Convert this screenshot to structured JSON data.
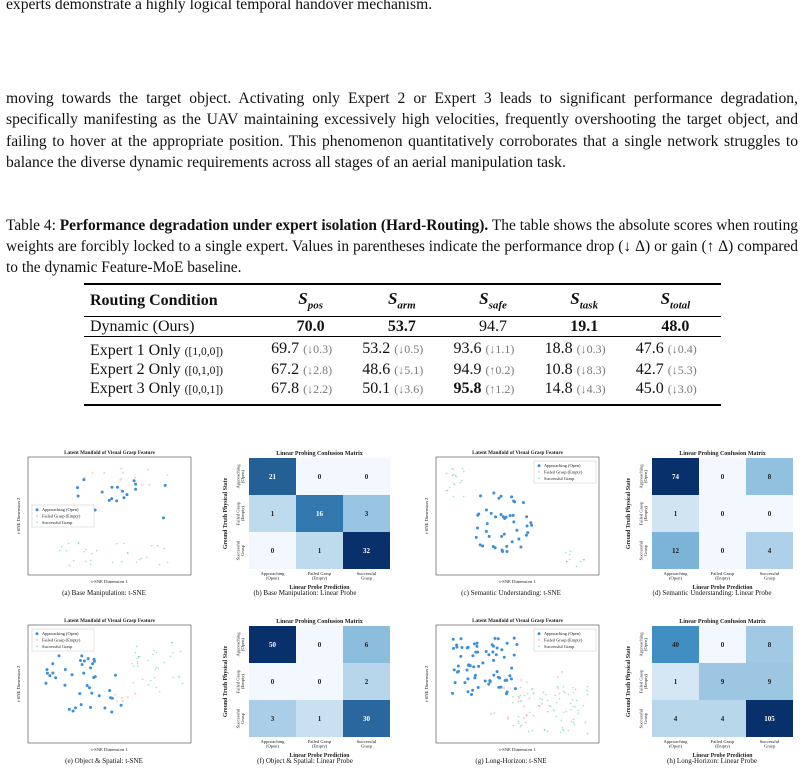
{
  "text": {
    "top_line": "experts demonstrate a highly logical temporal handover mechanism.",
    "paragraph": "moving towards the target object. Activating only Expert 2 or Expert 3 leads to significant performance degradation, specifically manifesting as the UAV maintaining excessively high velocities, frequently overshooting the target object, and failing to hover at the appropriate position. This phenomenon quantitatively corroborates that a single network struggles to balance the diverse dynamic requirements across all stages of an aerial manipulation task.",
    "caption_prefix": "Table 4: ",
    "caption_bold": "Performance degradation under expert isolation (Hard-Routing).",
    "caption_rest": " The table shows the absolute scores when routing weights are forcibly locked to a single expert. Values in parentheses indicate the performance drop (↓ Δ) or gain (↑ Δ) compared to the dynamic Feature-MoE baseline."
  },
  "table": {
    "header": [
      "Routing Condition",
      "S",
      "S",
      "S",
      "S",
      "S"
    ],
    "subscripts": [
      "pos",
      "arm",
      "safe",
      "task",
      "total"
    ],
    "dynamic": {
      "name": "Dynamic (Ours)",
      "values": [
        "70.0",
        "53.7",
        "94.7",
        "19.1",
        "48.0"
      ]
    },
    "rows": [
      {
        "name": "Expert 1 Only",
        "vec": "([1,0,0])",
        "values": [
          "69.7",
          "53.2",
          "93.6",
          "18.8",
          "47.6"
        ],
        "deltas": [
          "(↓0.3)",
          "(↓0.5)",
          "(↓1.1)",
          "(↓0.3)",
          "(↓0.4)"
        ]
      },
      {
        "name": "Expert 2 Only",
        "vec": "([0,1,0])",
        "values": [
          "67.2",
          "48.6",
          "94.9",
          "10.8",
          "42.7"
        ],
        "deltas": [
          "(↓2.8)",
          "(↓5.1)",
          "(↑0.2)",
          "(↓8.3)",
          "(↓5.3)"
        ]
      },
      {
        "name": "Expert 3 Only",
        "vec": "([0,0,1])",
        "values": [
          "67.8",
          "50.1",
          "95.8",
          "14.8",
          "45.0"
        ],
        "deltas": [
          "(↓2.2)",
          "(↓3.6)",
          "(↑1.2)",
          "(↓4.3)",
          "(↓3.0)"
        ]
      }
    ]
  },
  "figure": {
    "tsne_title": "Latent Manifold of Visual Grasp Feature",
    "tsne_xlabel": "t-SNE Dimension 1",
    "tsne_ylabel": "t-SNE Dimension 2",
    "legend": [
      "Approaching (Open)",
      "Failed Grasp (Empty)",
      "Successful Grasp"
    ],
    "cm_title": "Linear Probing Confusion Matrix",
    "cm_xlabel": "Linear Probe Prediction",
    "cm_ylabel": "Ground Truth Physical State",
    "cm_classes": [
      "Approaching (Open)",
      "Failed Grasp (Empty)",
      "Successful Grasp"
    ],
    "captions": [
      "(a) Base Manipulation: t-SNE",
      "(b) Base Manipulation: Linear Probe",
      "(c) Semantic Understanding: t-SNE",
      "(d) Semantic Understanding: Linear Probe",
      "(e) Object & Spatial: t-SNE",
      "(f) Object & Spatial: Linear Probe",
      "(g) Long-Horizon: t-SNE",
      "(h) Long-Horizon: Linear Probe"
    ],
    "matrices": [
      [
        [
          21,
          0,
          0
        ],
        [
          1,
          16,
          3
        ],
        [
          0,
          1,
          32
        ]
      ],
      [
        [
          74,
          0,
          8
        ],
        [
          1,
          0,
          0
        ],
        [
          12,
          0,
          4
        ]
      ],
      [
        [
          50,
          0,
          6
        ],
        [
          0,
          0,
          2
        ],
        [
          3,
          1,
          30
        ]
      ],
      [
        [
          40,
          0,
          8
        ],
        [
          1,
          9,
          9
        ],
        [
          4,
          4,
          105
        ]
      ]
    ],
    "colors": {
      "approach": "#3b8fd9",
      "failed": "#f28b82",
      "success": "#46c08a"
    }
  }
}
